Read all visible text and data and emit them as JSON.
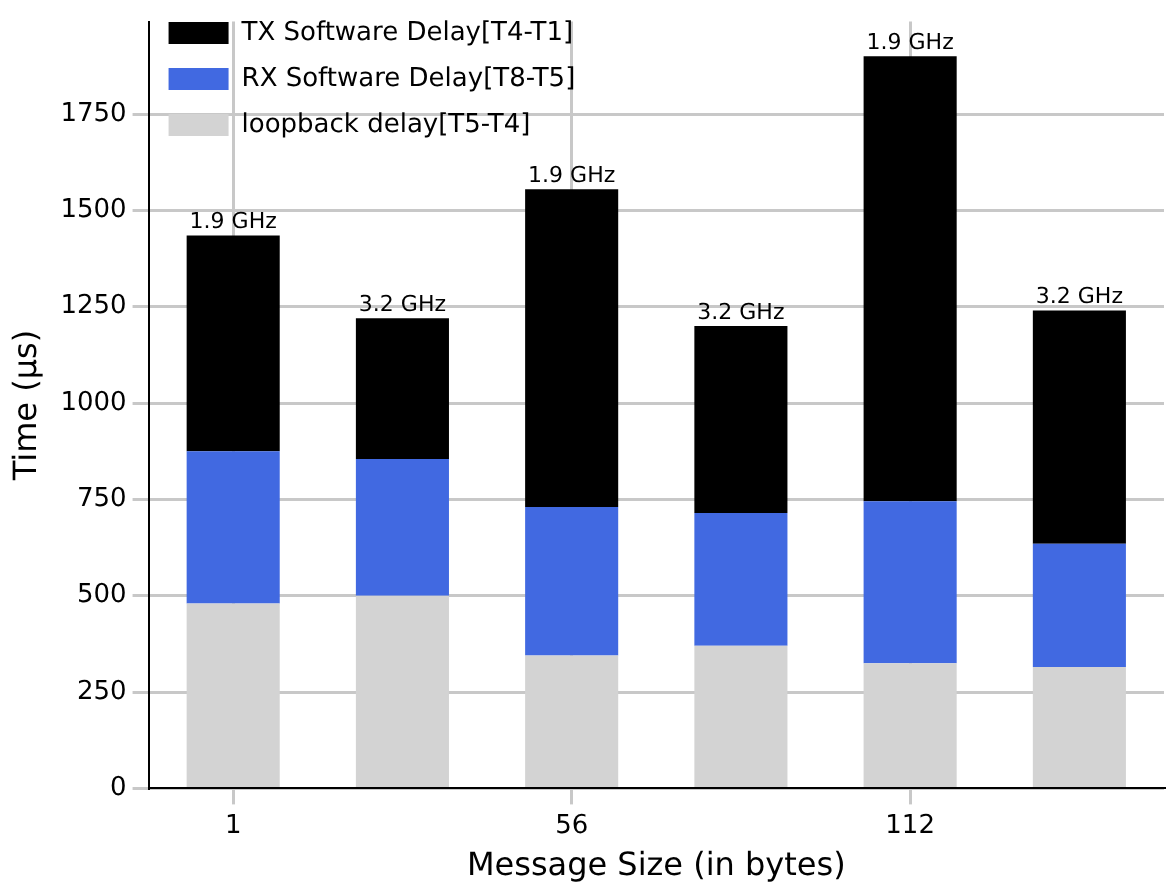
{
  "chart_data": {
    "type": "bar",
    "stacked": true,
    "xlabel": "Message Size (in bytes)",
    "ylabel": "Time (μs)",
    "categories": [
      "1",
      null,
      "56",
      null,
      "112",
      null
    ],
    "series": [
      {
        "name": "loopback delay[T5-T4]",
        "color": "#d3d3d3",
        "values": [
          480,
          500,
          345,
          370,
          325,
          315
        ]
      },
      {
        "name": "RX Software Delay[T8-T5]",
        "color": "#4169e1",
        "values": [
          395,
          355,
          385,
          345,
          420,
          320
        ]
      },
      {
        "name": "TX Software Delay[T4-T1]",
        "color": "#000000",
        "values": [
          560,
          365,
          825,
          485,
          1155,
          605
        ]
      }
    ],
    "annotations": [
      {
        "text": "1.9 GHz",
        "x": "1",
        "y": 1435
      },
      {
        "text": "3.2 GHz",
        "y": 1220
      },
      {
        "text": "1.9 GHz",
        "x": "56",
        "y": 1555
      },
      {
        "text": "3.2 GHz",
        "y": 1200
      },
      {
        "text": "1.9 GHz",
        "x": "112",
        "y": 1900
      },
      {
        "text": "3.2 GHz",
        "y": 1240
      }
    ],
    "ylim": [
      0,
      1990
    ],
    "yticks": [
      0,
      250,
      500,
      750,
      1000,
      1250,
      1500,
      1750
    ],
    "grid": true,
    "legend": "top left"
  }
}
